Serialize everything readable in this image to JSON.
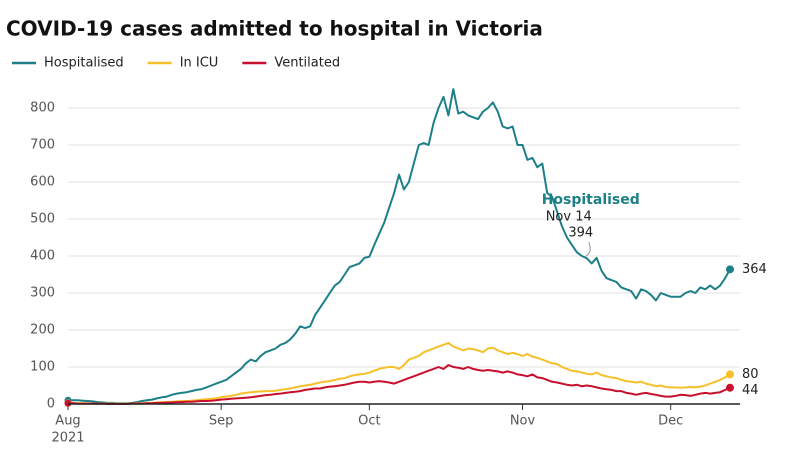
{
  "chart_data": {
    "type": "line",
    "title": "COVID-19 cases admitted to hospital in Victoria",
    "x_sublabel": "2021",
    "categories": [
      "Aug",
      null,
      null,
      null,
      null,
      null,
      null,
      null,
      null,
      null,
      null,
      null,
      null,
      null,
      null,
      null,
      null,
      null,
      null,
      null,
      null,
      null,
      null,
      null,
      null,
      null,
      null,
      null,
      null,
      null,
      null,
      "Sep",
      null,
      null,
      null,
      null,
      null,
      null,
      null,
      null,
      null,
      null,
      null,
      null,
      null,
      null,
      null,
      null,
      null,
      null,
      null,
      null,
      null,
      null,
      null,
      null,
      null,
      null,
      null,
      null,
      null,
      "Oct",
      null,
      null,
      null,
      null,
      null,
      null,
      null,
      null,
      null,
      null,
      null,
      null,
      null,
      null,
      null,
      null,
      null,
      null,
      null,
      null,
      null,
      null,
      null,
      null,
      null,
      null,
      null,
      null,
      null,
      null,
      "Nov",
      null,
      null,
      null,
      null,
      null,
      null,
      null,
      null,
      null,
      null,
      null,
      null,
      null,
      null,
      null,
      null,
      null,
      null,
      null,
      null,
      null,
      null,
      null,
      null,
      null,
      null,
      null,
      null,
      null,
      "Dec",
      null,
      null,
      null,
      null,
      null,
      null,
      null,
      null,
      null,
      null,
      null,
      null
    ],
    "series": [
      {
        "name": "Hospitalised",
        "color": "#1d7f87",
        "values": [
          10,
          10,
          10,
          9,
          8,
          7,
          5,
          4,
          3,
          3,
          2,
          2,
          2,
          3,
          5,
          8,
          10,
          12,
          15,
          18,
          20,
          25,
          28,
          30,
          32,
          35,
          38,
          40,
          45,
          50,
          55,
          60,
          65,
          75,
          85,
          95,
          110,
          120,
          115,
          130,
          140,
          145,
          150,
          160,
          165,
          175,
          190,
          210,
          205,
          210,
          240,
          260,
          280,
          300,
          320,
          330,
          350,
          370,
          375,
          380,
          395,
          398,
          430,
          460,
          490,
          530,
          570,
          620,
          580,
          600,
          650,
          700,
          705,
          700,
          760,
          800,
          830,
          780,
          851,
          785,
          790,
          780,
          775,
          770,
          790,
          800,
          815,
          790,
          750,
          745,
          750,
          700,
          700,
          660,
          665,
          640,
          650,
          570,
          560,
          520,
          480,
          450,
          430,
          410,
          400,
          394,
          380,
          395,
          360,
          340,
          335,
          330,
          315,
          310,
          305,
          285,
          310,
          305,
          295,
          280,
          300,
          295,
          290,
          290,
          290,
          300,
          305,
          300,
          315,
          310,
          320,
          310,
          320,
          340,
          364
        ]
      },
      {
        "name": "In ICU",
        "color": "#f5c02a",
        "values": [
          3,
          3,
          2,
          2,
          2,
          1,
          1,
          1,
          1,
          1,
          1,
          1,
          1,
          1,
          2,
          2,
          3,
          3,
          4,
          5,
          5,
          6,
          7,
          8,
          8,
          9,
          10,
          12,
          13,
          14,
          15,
          18,
          20,
          22,
          25,
          28,
          30,
          32,
          33,
          34,
          35,
          35,
          36,
          38,
          40,
          42,
          45,
          48,
          50,
          52,
          55,
          58,
          60,
          62,
          65,
          68,
          70,
          75,
          78,
          80,
          82,
          85,
          90,
          95,
          98,
          100,
          100,
          95,
          105,
          120,
          125,
          130,
          140,
          145,
          150,
          155,
          160,
          165,
          155,
          150,
          145,
          150,
          148,
          145,
          140,
          150,
          152,
          145,
          140,
          135,
          138,
          135,
          130,
          135,
          128,
          125,
          120,
          115,
          110,
          108,
          100,
          95,
          90,
          88,
          85,
          82,
          80,
          85,
          78,
          75,
          72,
          70,
          65,
          62,
          60,
          58,
          60,
          55,
          52,
          48,
          50,
          46,
          45,
          45,
          44,
          45,
          46,
          45,
          47,
          50,
          55,
          60,
          65,
          72,
          80
        ]
      },
      {
        "name": "Ventilated",
        "color": "#c8102e",
        "values": [
          2,
          2,
          1,
          1,
          1,
          1,
          1,
          1,
          0,
          0,
          0,
          0,
          0,
          1,
          1,
          1,
          2,
          2,
          3,
          3,
          4,
          4,
          5,
          5,
          6,
          6,
          7,
          8,
          8,
          9,
          10,
          12,
          13,
          14,
          15,
          16,
          17,
          18,
          20,
          22,
          24,
          25,
          27,
          28,
          30,
          32,
          33,
          35,
          38,
          40,
          42,
          42,
          45,
          47,
          48,
          50,
          52,
          55,
          58,
          60,
          60,
          58,
          60,
          62,
          60,
          58,
          55,
          60,
          65,
          70,
          75,
          80,
          85,
          90,
          95,
          100,
          95,
          105,
          100,
          98,
          95,
          100,
          95,
          92,
          90,
          92,
          90,
          88,
          85,
          88,
          85,
          80,
          78,
          75,
          80,
          72,
          70,
          65,
          60,
          58,
          55,
          52,
          50,
          52,
          48,
          50,
          48,
          45,
          42,
          40,
          38,
          35,
          35,
          30,
          28,
          25,
          28,
          30,
          27,
          25,
          22,
          20,
          20,
          22,
          25,
          24,
          22,
          25,
          28,
          30,
          28,
          30,
          32,
          38,
          44
        ]
      }
    ],
    "annotation": {
      "series": 0,
      "date": "Nov 14",
      "value": 394
    },
    "ylim": [
      0,
      850
    ],
    "yticks": [
      0,
      100,
      200,
      300,
      400,
      500,
      600,
      700,
      800
    ],
    "grid": true,
    "legend": "top-left"
  }
}
